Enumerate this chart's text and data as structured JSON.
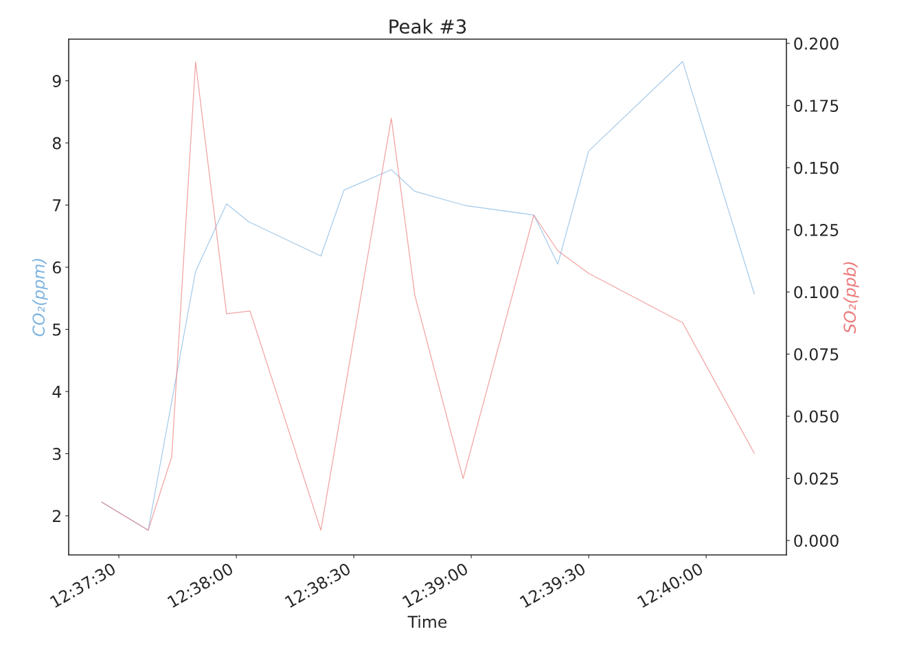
{
  "chart_data": {
    "type": "line",
    "title": "Peak #3",
    "xlabel": "Time",
    "ylabel": "CO₂(ppm)",
    "y2label": "SO₂(ppb)",
    "xlim": [
      12.62144,
      12.67236
    ],
    "xticks": [
      {
        "value": 12.625,
        "label": "12:37:30"
      },
      {
        "value": 12.633333,
        "label": "12:38:00"
      },
      {
        "value": 12.641667,
        "label": "12:38:30"
      },
      {
        "value": 12.65,
        "label": "12:39:00"
      },
      {
        "value": 12.658333,
        "label": "12:39:30"
      },
      {
        "value": 12.666667,
        "label": "12:40:00"
      }
    ],
    "ylim": [
      1.37,
      9.67
    ],
    "yticks": [
      2,
      3,
      4,
      5,
      6,
      7,
      8,
      9
    ],
    "y2lim": [
      -0.0058,
      0.2017
    ],
    "y2ticks": [
      {
        "value": 0,
        "label": "0.000"
      },
      {
        "value": 0.025,
        "label": "0.025"
      },
      {
        "value": 0.05,
        "label": "0.050"
      },
      {
        "value": 0.075,
        "label": "0.075"
      },
      {
        "value": 0.1,
        "label": "0.100"
      },
      {
        "value": 0.125,
        "label": "0.125"
      },
      {
        "value": 0.15,
        "label": "0.150"
      },
      {
        "value": 0.175,
        "label": "0.175"
      },
      {
        "value": 0.2,
        "label": "0.200"
      }
    ],
    "grid": false,
    "legend": false,
    "series": [
      {
        "color": "#7fb4e0",
        "x": [
          12.62378,
          12.62708,
          12.63044,
          12.63264,
          12.63422,
          12.63933,
          12.64097,
          12.64433,
          12.646,
          12.64961,
          12.65444,
          12.65614,
          12.65833,
          12.665,
          12.67008
        ],
        "values": [
          2.22,
          1.77,
          5.93,
          7.02,
          6.73,
          6.18,
          7.24,
          7.57,
          7.22,
          6.99,
          6.84,
          6.05,
          7.87,
          9.31,
          5.57
        ]
      },
      {
        "color": "#ec7a7a",
        "axis": "y2",
        "x": [
          12.62378,
          12.62708,
          12.62875,
          12.63044,
          12.63264,
          12.63431,
          12.63933,
          12.64433,
          12.646,
          12.64942,
          12.65444,
          12.65614,
          12.65833,
          12.665,
          12.67008
        ],
        "values": [
          0.0155,
          0.0041,
          0.0337,
          0.1925,
          0.0912,
          0.0923,
          0.0041,
          0.1699,
          0.0986,
          0.0249,
          0.1309,
          0.1166,
          0.1075,
          0.0876,
          0.0351
        ]
      }
    ]
  }
}
